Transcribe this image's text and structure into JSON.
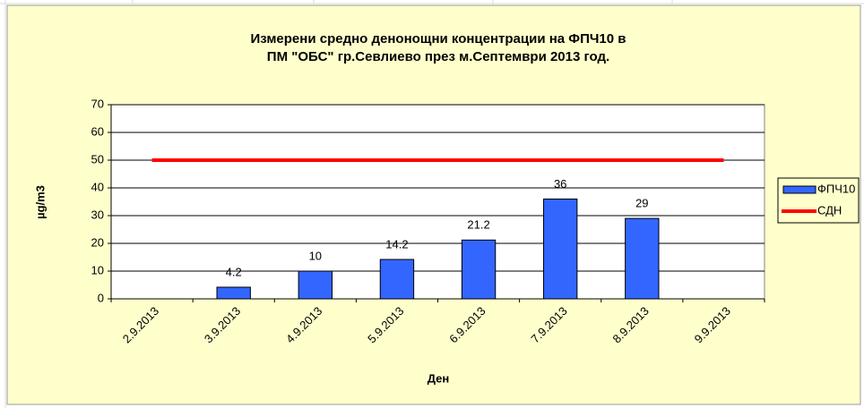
{
  "chart_data": {
    "type": "bar",
    "title": [
      "Измерени средно денонощни концентрации на ФПЧ10 в",
      "ПМ \"ОБС\" гр.Севлиево през м.Септември 2013 год."
    ],
    "x_label": "Ден",
    "y_label": "µg/m3",
    "categories": [
      "2.9.2013",
      "3.9.2013",
      "4.9.2013",
      "5.9.2013",
      "6.9.2013",
      "7.9.2013",
      "8.9.2013",
      "9.9.2013"
    ],
    "series": [
      {
        "name": "ФПЧ10",
        "color": "#3366ff",
        "values": [
          null,
          4.2,
          10,
          14.2,
          21.2,
          36,
          29,
          null
        ]
      },
      {
        "name": "СДН",
        "type": "line",
        "color": "#ff0000",
        "values": [
          50,
          50,
          50,
          50,
          50,
          50,
          50,
          50
        ]
      }
    ],
    "ylim": [
      0,
      70
    ],
    "yticks": [
      0,
      10,
      20,
      30,
      40,
      50,
      60,
      70
    ],
    "grid": true,
    "legend": "right"
  }
}
